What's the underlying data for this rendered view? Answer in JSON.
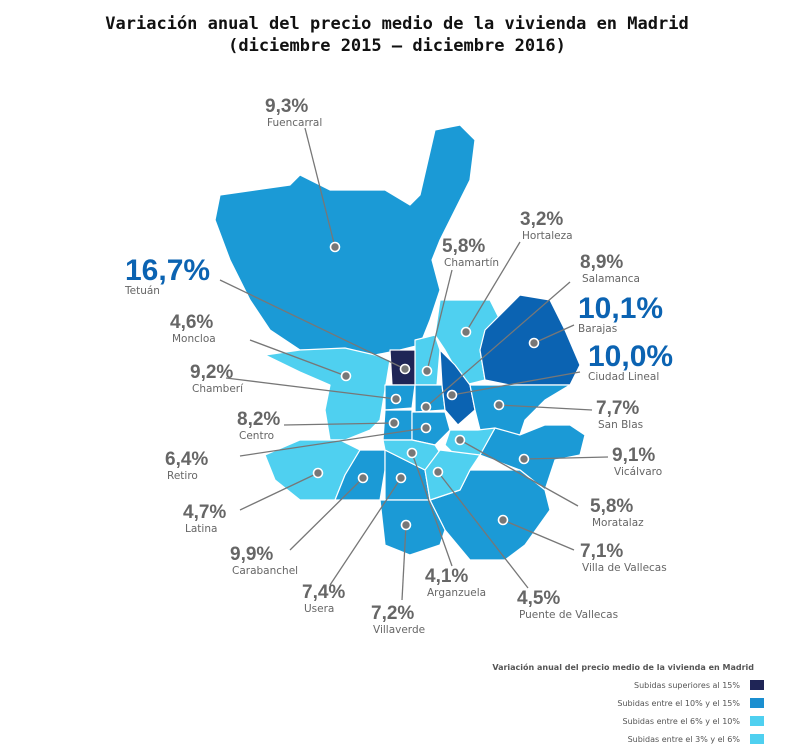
{
  "title_line1": "Variación anual del precio medio de la vivienda en Madrid",
  "title_line2": "(diciembre 2015 – diciembre 2016)",
  "colors": {
    "label_gray": "#666666",
    "label_blue": "#0b63b2",
    "leader": "#777777",
    "dot": "#777777"
  },
  "districts": [
    {
      "name": "Fuencarral",
      "value": "9,3%",
      "color": "#1b9ad6",
      "highlight": false
    },
    {
      "name": "Chamartín",
      "value": "5,8%",
      "color": "#4fd0f0",
      "highlight": false
    },
    {
      "name": "Hortaleza",
      "value": "3,2%",
      "color": "#4fd0f0",
      "highlight": false
    },
    {
      "name": "Tetuán",
      "value": "16,7%",
      "color": "#1f2556",
      "highlight": true
    },
    {
      "name": "Salamanca",
      "value": "8,9%",
      "color": "#1b9ad6",
      "highlight": false
    },
    {
      "name": "Moncloa",
      "value": "4,6%",
      "color": "#4fd0f0",
      "highlight": false
    },
    {
      "name": "Barajas",
      "value": "10,1%",
      "color": "#0b63b2",
      "highlight": true
    },
    {
      "name": "Ciudad Lineal",
      "value": "10,0%",
      "color": "#0b63b2",
      "highlight": true
    },
    {
      "name": "Chamberí",
      "value": "9,2%",
      "color": "#1b9ad6",
      "highlight": false
    },
    {
      "name": "San Blas",
      "value": "7,7%",
      "color": "#1b9ad6",
      "highlight": false
    },
    {
      "name": "Centro",
      "value": "8,2%",
      "color": "#1b9ad6",
      "highlight": false
    },
    {
      "name": "Retiro",
      "value": "6,4%",
      "color": "#1b9ad6",
      "highlight": false
    },
    {
      "name": "Vicálvaro",
      "value": "9,1%",
      "color": "#1b9ad6",
      "highlight": false
    },
    {
      "name": "Latina",
      "value": "4,7%",
      "color": "#4fd0f0",
      "highlight": false
    },
    {
      "name": "Moratalaz",
      "value": "5,8%",
      "color": "#4fd0f0",
      "highlight": false
    },
    {
      "name": "Carabanchel",
      "value": "9,9%",
      "color": "#1b9ad6",
      "highlight": false
    },
    {
      "name": "Villa de Vallecas",
      "value": "7,1%",
      "color": "#1b9ad6",
      "highlight": false
    },
    {
      "name": "Usera",
      "value": "7,4%",
      "color": "#1b9ad6",
      "highlight": false
    },
    {
      "name": "Arganzuela",
      "value": "4,1%",
      "color": "#4fd0f0",
      "highlight": false
    },
    {
      "name": "Puente de Vallecas",
      "value": "4,5%",
      "color": "#4fd0f0",
      "highlight": false
    },
    {
      "name": "Villaverde",
      "value": "7,2%",
      "color": "#1b9ad6",
      "highlight": false
    }
  ],
  "legend": {
    "title": "Variación anual del precio medio de la vivienda en Madrid",
    "items": [
      {
        "label": "Subidas superiores al 15%",
        "color": "#1f2556"
      },
      {
        "label": "Subidas entre el 10% y el 15%",
        "color": "#1b8fd0"
      },
      {
        "label": "Subidas entre el 6% y el 10%",
        "color": "#4fd0f0"
      },
      {
        "label": "Subidas entre el 3% y el 6%",
        "color": "#4fd0f0"
      }
    ]
  }
}
